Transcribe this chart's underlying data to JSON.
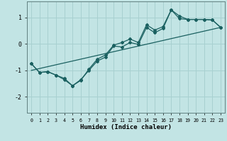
{
  "xlabel": "Humidex (Indice chaleur)",
  "xlim": [
    -0.5,
    23.5
  ],
  "ylim": [
    -2.6,
    1.6
  ],
  "xticks": [
    0,
    1,
    2,
    3,
    4,
    5,
    6,
    7,
    8,
    9,
    10,
    11,
    12,
    13,
    14,
    15,
    16,
    17,
    18,
    19,
    20,
    21,
    22,
    23
  ],
  "yticks": [
    -2,
    -1,
    0,
    1
  ],
  "bg_color": "#c2e4e4",
  "grid_color": "#a8d0d0",
  "line_color": "#1a6060",
  "line1_x": [
    0,
    1,
    2,
    3,
    4,
    5,
    6,
    7,
    8,
    9,
    10,
    11,
    12,
    13,
    14,
    15,
    16,
    17,
    18,
    19,
    20,
    21,
    22,
    23
  ],
  "line1_y": [
    -0.75,
    -1.08,
    -1.05,
    -1.18,
    -1.3,
    -1.58,
    -1.35,
    -1.0,
    -0.65,
    -0.5,
    -0.08,
    -0.12,
    0.05,
    -0.02,
    0.62,
    0.42,
    0.58,
    1.28,
    0.95,
    0.92,
    0.92,
    0.92,
    0.9,
    0.62
  ],
  "line2_x": [
    0,
    1,
    2,
    3,
    4,
    5,
    6,
    7,
    8,
    9,
    10,
    11,
    12,
    13,
    14,
    15,
    16,
    17,
    18,
    19,
    20,
    21,
    22,
    23
  ],
  "line2_y": [
    -0.75,
    -1.08,
    -1.05,
    -1.18,
    -1.35,
    -1.58,
    -1.38,
    -0.95,
    -0.58,
    -0.42,
    -0.05,
    0.05,
    0.18,
    0.05,
    0.72,
    0.52,
    0.65,
    1.28,
    1.05,
    0.92,
    0.92,
    0.92,
    0.9,
    0.62
  ],
  "line3_x": [
    0,
    23
  ],
  "line3_y": [
    -1.0,
    0.62
  ]
}
